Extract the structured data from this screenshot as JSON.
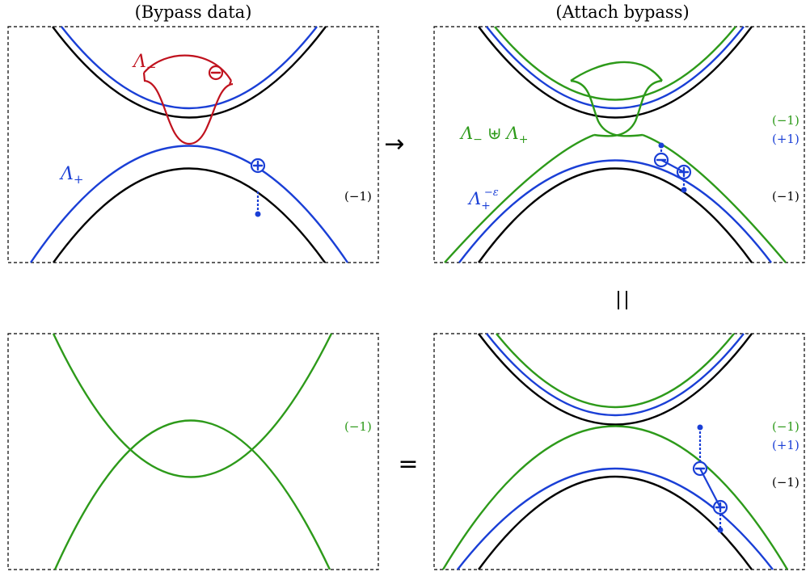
{
  "titles": {
    "top_left": "(Bypass data)",
    "top_right": "(Attach bypass)"
  },
  "labels": {
    "lambda_minus": "Λ",
    "lambda_minus_sub": "−",
    "lambda_plus": "Λ",
    "lambda_plus_sub": "+",
    "union_left": "Λ",
    "union_left_sub": "−",
    "union_op": "⊎",
    "union_right": "Λ",
    "union_right_sub": "+",
    "lambda_eps": "Λ",
    "lambda_eps_sub": "+",
    "lambda_eps_sup": "−ε"
  },
  "gradings": {
    "tl_black": "(−1)",
    "tr_green": "(−1)",
    "tr_blue": "(+1)",
    "tr_black": "(−1)",
    "bl_green": "(−1)",
    "br_green": "(−1)",
    "br_blue": "(+1)",
    "br_black": "(−1)"
  },
  "operators": {
    "arrow": "→",
    "equals_vertical": "=",
    "equals": "="
  },
  "signs": {
    "plus": "+",
    "minus": "−"
  },
  "colors": {
    "black": "#000000",
    "blue": "#1a3fd6",
    "green": "#2d9a1a",
    "red": "#c0121e"
  }
}
